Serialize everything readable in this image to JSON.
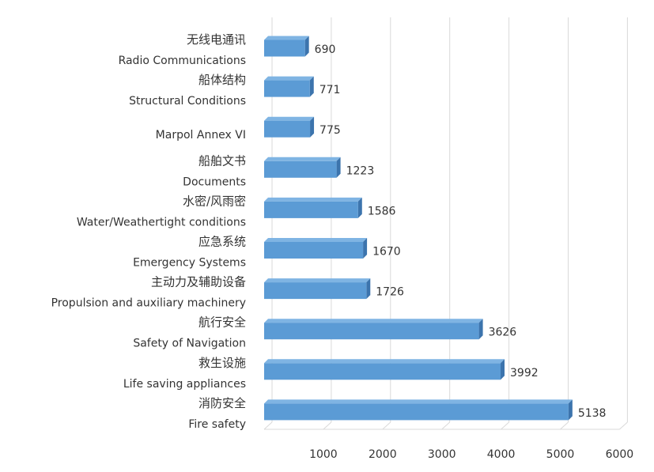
{
  "chart_data": {
    "type": "bar",
    "orientation": "horizontal",
    "style": "3d",
    "title": "",
    "xlabel": "",
    "ylabel": "",
    "xlim": [
      0,
      6000
    ],
    "ticks": [
      "1000",
      "2000",
      "3000",
      "4000",
      "5000",
      "6000"
    ],
    "grid": true,
    "categories": [
      {
        "cn": "无线电通讯",
        "en": "Radio Communications",
        "value": 690,
        "label": "690"
      },
      {
        "cn": "船体结构",
        "en": "Structural Conditions",
        "value": 771,
        "label": "771"
      },
      {
        "cn": "",
        "en": "Marpol Annex VI",
        "value": 775,
        "label": "775"
      },
      {
        "cn": "船舶文书",
        "en": "Documents",
        "value": 1223,
        "label": "1223"
      },
      {
        "cn": "水密/风雨密",
        "en": "Water/Weathertight conditions",
        "value": 1586,
        "label": "1586"
      },
      {
        "cn": "应急系统",
        "en": "Emergency Systems",
        "value": 1670,
        "label": "1670"
      },
      {
        "cn": "主动力及辅助设备",
        "en": "Propulsion and auxiliary machinery",
        "value": 1726,
        "label": "1726"
      },
      {
        "cn": "航行安全",
        "en": "Safety of Navigation",
        "value": 3626,
        "label": "3626"
      },
      {
        "cn": "救生设施",
        "en": "Life saving appliances",
        "value": 3992,
        "label": "3992"
      },
      {
        "cn": "消防安全",
        "en": "Fire safety",
        "value": 5138,
        "label": "5138"
      }
    ],
    "colors": {
      "bar_front": "#5b9bd5",
      "bar_top": "#7fb4e3",
      "bar_side": "#3c74ad",
      "grid": "#d9d9d9"
    }
  }
}
